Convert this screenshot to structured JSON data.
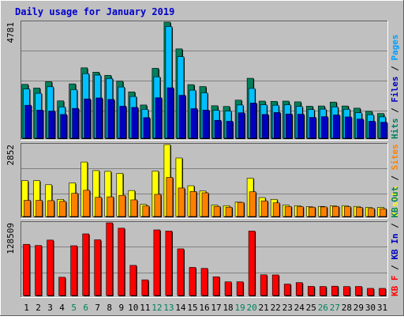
{
  "title": "Daily usage for January 2019",
  "days": [
    "1",
    "2",
    "3",
    "4",
    "5",
    "6",
    "7",
    "8",
    "9",
    "10",
    "11",
    "12",
    "13",
    "14",
    "15",
    "16",
    "17",
    "18",
    "19",
    "20",
    "21",
    "22",
    "23",
    "24",
    "25",
    "26",
    "27",
    "28",
    "29",
    "30",
    "31"
  ],
  "weekend_days": [
    5,
    6,
    12,
    13,
    19,
    20,
    26,
    27
  ],
  "colors": {
    "background": "#c0c0c0",
    "title": "#0000cc",
    "hits": "#00805c",
    "files": "#00c0ff",
    "pages": "#0000c0",
    "visits": "#ffff00",
    "sites": "#ff8000",
    "kbytes": "#ff0000",
    "weekend_label": "#00805c",
    "weekday_label": "#000000"
  },
  "chart_data": [
    {
      "type": "bar",
      "name": "top",
      "ymax_label": "4781",
      "ymax": 4781,
      "legend": [
        {
          "text": "Hits",
          "color": "#00805c"
        },
        {
          "text": "Files",
          "color": "#0000c0"
        },
        {
          "text": "Pages",
          "color": "#00a0ff"
        }
      ],
      "series": [
        {
          "key": "hits",
          "values": [
            2220,
            2070,
            2330,
            1540,
            2240,
            2900,
            2720,
            2590,
            2350,
            1910,
            1370,
            2880,
            4781,
            3680,
            2210,
            2130,
            1340,
            1310,
            1570,
            2470,
            1530,
            1520,
            1530,
            1500,
            1320,
            1330,
            1490,
            1330,
            1240,
            1110,
            1020
          ]
        },
        {
          "key": "files",
          "values": [
            2030,
            1850,
            2120,
            1290,
            2000,
            2660,
            2600,
            2460,
            2110,
            1720,
            1190,
            2530,
            4600,
            3360,
            1980,
            1870,
            1150,
            1120,
            1370,
            2050,
            1380,
            1360,
            1380,
            1310,
            1180,
            1200,
            1290,
            1190,
            1050,
            970,
            880
          ]
        },
        {
          "key": "pages",
          "values": [
            1360,
            1160,
            1120,
            980,
            1230,
            1620,
            1660,
            1600,
            1320,
            1270,
            850,
            1670,
            2080,
            1770,
            1220,
            1160,
            740,
            700,
            1050,
            1450,
            980,
            1060,
            1000,
            990,
            860,
            890,
            960,
            880,
            790,
            700,
            660
          ]
        }
      ]
    },
    {
      "type": "bar",
      "name": "middle",
      "ymax_label": "2852",
      "ymax": 2852,
      "legend": [
        {
          "text": "Visits",
          "color": "#ffff00"
        },
        {
          "text": "Sites",
          "color": "#ff8000"
        }
      ],
      "series": [
        {
          "key": "visits",
          "values": [
            1420,
            1420,
            1260,
            680,
            1330,
            2160,
            1820,
            1790,
            1710,
            1030,
            480,
            1800,
            2852,
            2320,
            1220,
            1010,
            450,
            430,
            570,
            1520,
            750,
            680,
            450,
            430,
            390,
            400,
            430,
            430,
            400,
            360,
            360
          ]
        },
        {
          "key": "sites",
          "values": [
            640,
            640,
            630,
            600,
            920,
            1040,
            760,
            780,
            840,
            660,
            420,
            880,
            1550,
            1130,
            990,
            940,
            400,
            370,
            560,
            980,
            620,
            540,
            400,
            390,
            370,
            380,
            400,
            390,
            360,
            320,
            310
          ]
        }
      ]
    },
    {
      "type": "bar",
      "name": "bottom",
      "ymax_label": "128509",
      "ymax": 128509,
      "legend": [
        {
          "text": "KB F",
          "color": "#ff0000"
        },
        {
          "text": "KB In",
          "color": "#0000c0"
        },
        {
          "text": "KB Out",
          "color": "#00805c"
        }
      ],
      "series": [
        {
          "key": "kbytes",
          "values": [
            90500,
            88500,
            98000,
            32300,
            88000,
            109000,
            98500,
            128509,
            119000,
            53300,
            27700,
            116000,
            114000,
            82500,
            49700,
            48000,
            33100,
            24200,
            24300,
            114000,
            36600,
            36400,
            20200,
            22900,
            16200,
            16000,
            16500,
            15900,
            16000,
            12600,
            12600
          ]
        }
      ]
    }
  ]
}
